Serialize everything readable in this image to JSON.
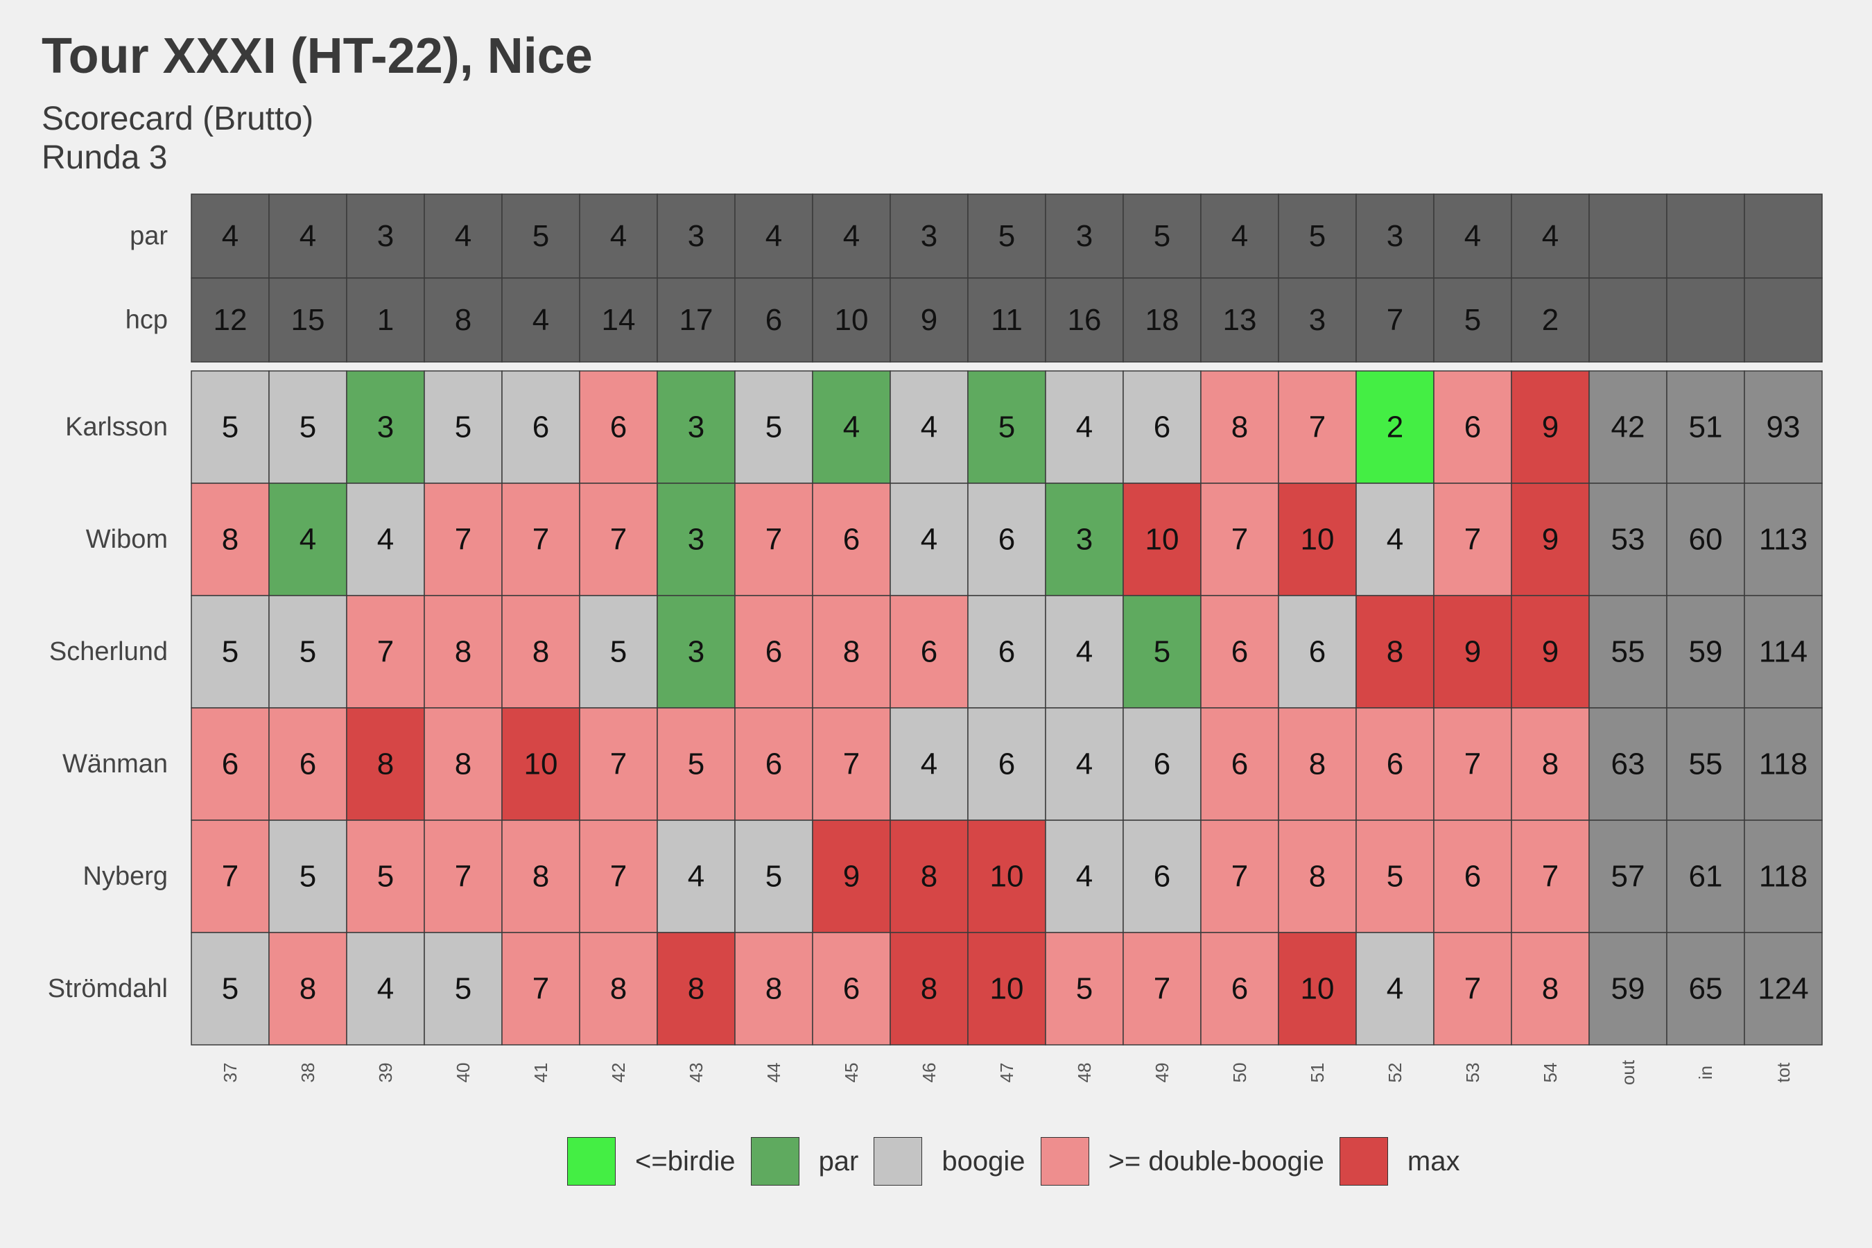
{
  "title": "Tour XXXI (HT-22), Nice",
  "subtitle_1": "Scorecard (Brutto)",
  "subtitle_2": "Runda 3",
  "colors": {
    "background": "#f0f0f0",
    "header": "#646464",
    "totals": "#8c8c8c",
    "birdie": "#44ee44",
    "par": "#5faa5f",
    "bogey": "#c4c4c4",
    "double_bogey": "#ee8e8e",
    "max": "#d64646"
  },
  "legend": [
    {
      "key": "birdie",
      "label": "<=birdie"
    },
    {
      "key": "par",
      "label": "par"
    },
    {
      "key": "bogey",
      "label": "boogie"
    },
    {
      "key": "double_bogey",
      "label": ">= double-boogie"
    },
    {
      "key": "max",
      "label": "max"
    }
  ],
  "chart_data": {
    "type": "heatmap",
    "columns": [
      "37",
      "38",
      "39",
      "40",
      "41",
      "42",
      "43",
      "44",
      "45",
      "46",
      "47",
      "48",
      "49",
      "50",
      "51",
      "52",
      "53",
      "54",
      "out",
      "in",
      "tot"
    ],
    "par": [
      4,
      4,
      3,
      4,
      5,
      4,
      3,
      4,
      4,
      3,
      5,
      3,
      5,
      4,
      5,
      3,
      4,
      4
    ],
    "hcp": [
      12,
      15,
      1,
      8,
      4,
      14,
      17,
      6,
      10,
      9,
      11,
      16,
      18,
      13,
      3,
      7,
      5,
      2
    ],
    "header_rows": [
      "par",
      "hcp"
    ],
    "players": [
      {
        "name": "Karlsson",
        "scores": [
          5,
          5,
          3,
          5,
          6,
          6,
          3,
          5,
          4,
          4,
          5,
          4,
          6,
          8,
          7,
          2,
          6,
          9
        ],
        "out": 42,
        "in": 51,
        "tot": 93,
        "categories": [
          "bogey",
          "bogey",
          "par",
          "bogey",
          "bogey",
          "double_bogey",
          "par",
          "bogey",
          "par",
          "bogey",
          "par",
          "bogey",
          "bogey",
          "double_bogey",
          "double_bogey",
          "birdie",
          "double_bogey",
          "max"
        ]
      },
      {
        "name": "Wibom",
        "scores": [
          8,
          4,
          4,
          7,
          7,
          7,
          3,
          7,
          6,
          4,
          6,
          3,
          10,
          7,
          10,
          4,
          7,
          9
        ],
        "out": 53,
        "in": 60,
        "tot": 113,
        "categories": [
          "double_bogey",
          "par",
          "bogey",
          "double_bogey",
          "double_bogey",
          "double_bogey",
          "par",
          "double_bogey",
          "double_bogey",
          "bogey",
          "bogey",
          "par",
          "max",
          "double_bogey",
          "max",
          "bogey",
          "double_bogey",
          "max"
        ]
      },
      {
        "name": "Scherlund",
        "scores": [
          5,
          5,
          7,
          8,
          8,
          5,
          3,
          6,
          8,
          6,
          6,
          4,
          5,
          6,
          6,
          8,
          9,
          9
        ],
        "out": 55,
        "in": 59,
        "tot": 114,
        "categories": [
          "bogey",
          "bogey",
          "double_bogey",
          "double_bogey",
          "double_bogey",
          "bogey",
          "par",
          "double_bogey",
          "double_bogey",
          "double_bogey",
          "bogey",
          "bogey",
          "par",
          "double_bogey",
          "bogey",
          "max",
          "max",
          "max"
        ]
      },
      {
        "name": "Wänman",
        "scores": [
          6,
          6,
          8,
          8,
          10,
          7,
          5,
          6,
          7,
          4,
          6,
          4,
          6,
          6,
          8,
          6,
          7,
          8
        ],
        "out": 63,
        "in": 55,
        "tot": 118,
        "categories": [
          "double_bogey",
          "double_bogey",
          "max",
          "double_bogey",
          "max",
          "double_bogey",
          "double_bogey",
          "double_bogey",
          "double_bogey",
          "bogey",
          "bogey",
          "bogey",
          "bogey",
          "double_bogey",
          "double_bogey",
          "double_bogey",
          "double_bogey",
          "double_bogey"
        ]
      },
      {
        "name": "Nyberg",
        "scores": [
          7,
          5,
          5,
          7,
          8,
          7,
          4,
          5,
          9,
          8,
          10,
          4,
          6,
          7,
          8,
          5,
          6,
          7
        ],
        "out": 57,
        "in": 61,
        "tot": 118,
        "categories": [
          "double_bogey",
          "bogey",
          "double_bogey",
          "double_bogey",
          "double_bogey",
          "double_bogey",
          "bogey",
          "bogey",
          "max",
          "max",
          "max",
          "bogey",
          "bogey",
          "double_bogey",
          "double_bogey",
          "double_bogey",
          "double_bogey",
          "double_bogey"
        ]
      },
      {
        "name": "Strömdahl",
        "scores": [
          5,
          8,
          4,
          5,
          7,
          8,
          8,
          8,
          6,
          8,
          10,
          5,
          7,
          6,
          10,
          4,
          7,
          8
        ],
        "out": 59,
        "in": 65,
        "tot": 124,
        "categories": [
          "bogey",
          "double_bogey",
          "bogey",
          "bogey",
          "double_bogey",
          "double_bogey",
          "max",
          "double_bogey",
          "double_bogey",
          "max",
          "max",
          "double_bogey",
          "double_bogey",
          "double_bogey",
          "max",
          "bogey",
          "double_bogey",
          "double_bogey"
        ]
      }
    ]
  }
}
